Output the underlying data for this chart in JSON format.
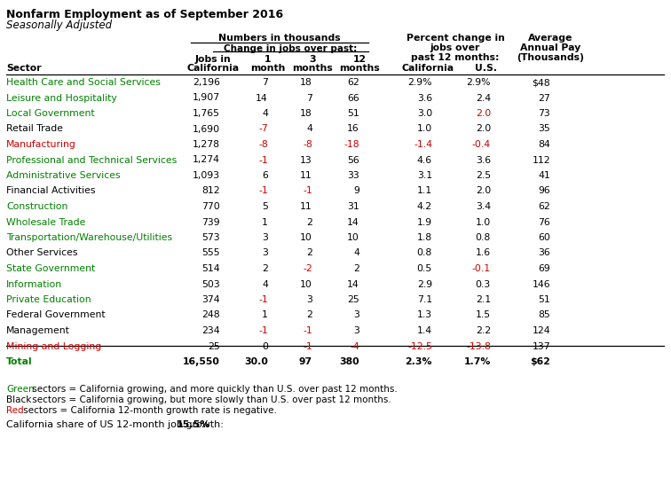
{
  "title": "Nonfarm Employment as of September 2016",
  "subtitle": "Seasonally Adjusted",
  "sectors": [
    "Health Care and Social Services",
    "Leisure and Hospitality",
    "Local Government",
    "Retail Trade",
    "Manufacturing",
    "Professional and Technical Services",
    "Administrative Services",
    "Financial Activities",
    "Construction",
    "Wholesale Trade",
    "Transportation/Warehouse/Utilities",
    "Other Services",
    "State Government",
    "Information",
    "Private Education",
    "Federal Government",
    "Management",
    "Mining and Logging",
    "Total"
  ],
  "jobs_ca": [
    "2,196",
    "1,907",
    "1,765",
    "1,690",
    "1,278",
    "1,274",
    "1,093",
    "812",
    "770",
    "739",
    "573",
    "555",
    "514",
    "503",
    "374",
    "248",
    "234",
    "25",
    "16,550"
  ],
  "change_1m": [
    "7",
    "14",
    "4",
    "-7",
    "-8",
    "-1",
    "6",
    "-1",
    "5",
    "1",
    "3",
    "3",
    "2",
    "4",
    "-1",
    "1",
    "-1",
    "0",
    "30.0"
  ],
  "change_3m": [
    "18",
    "7",
    "18",
    "4",
    "-8",
    "13",
    "11",
    "-1",
    "11",
    "2",
    "10",
    "2",
    "-2",
    "10",
    "3",
    "2",
    "-1",
    "-1",
    "97"
  ],
  "change_12m": [
    "62",
    "66",
    "51",
    "16",
    "-18",
    "56",
    "33",
    "9",
    "31",
    "14",
    "10",
    "4",
    "2",
    "14",
    "25",
    "3",
    "3",
    "-4",
    "380"
  ],
  "pct_ca": [
    "2.9%",
    "3.6",
    "3.0",
    "1.0",
    "-1.4",
    "4.6",
    "3.1",
    "1.1",
    "4.2",
    "1.9",
    "1.8",
    "0.8",
    "0.5",
    "2.9",
    "7.1",
    "1.3",
    "1.4",
    "-12.5",
    "2.3%"
  ],
  "pct_us": [
    "2.9%",
    "2.4",
    "2.0",
    "2.0",
    "-0.4",
    "3.6",
    "2.5",
    "2.0",
    "3.4",
    "1.0",
    "0.8",
    "1.6",
    "-0.1",
    "0.3",
    "2.1",
    "1.5",
    "2.2",
    "-13.8",
    "1.7%"
  ],
  "avg_pay": [
    "$48",
    "27",
    "73",
    "35",
    "84",
    "112",
    "41",
    "96",
    "62",
    "76",
    "60",
    "36",
    "69",
    "146",
    "51",
    "85",
    "124",
    "137",
    "$62"
  ],
  "sector_colors": [
    "green",
    "green",
    "green",
    "black",
    "red",
    "green",
    "green",
    "black",
    "green",
    "green",
    "green",
    "black",
    "green",
    "green",
    "green",
    "black",
    "black",
    "red",
    "green"
  ],
  "change_1m_colors": [
    "black",
    "black",
    "black",
    "red",
    "red",
    "red",
    "black",
    "red",
    "black",
    "black",
    "black",
    "black",
    "black",
    "black",
    "red",
    "black",
    "red",
    "black",
    "black"
  ],
  "change_3m_colors": [
    "black",
    "black",
    "black",
    "black",
    "red",
    "black",
    "black",
    "red",
    "black",
    "black",
    "black",
    "black",
    "red",
    "black",
    "black",
    "black",
    "red",
    "red",
    "black"
  ],
  "change_12m_colors": [
    "black",
    "black",
    "black",
    "black",
    "red",
    "black",
    "black",
    "black",
    "black",
    "black",
    "black",
    "black",
    "black",
    "black",
    "black",
    "black",
    "black",
    "red",
    "black"
  ],
  "pct_ca_colors": [
    "black",
    "black",
    "black",
    "black",
    "red",
    "black",
    "black",
    "black",
    "black",
    "black",
    "black",
    "black",
    "black",
    "black",
    "black",
    "black",
    "black",
    "red",
    "black"
  ],
  "pct_us_colors": [
    "black",
    "black",
    "red",
    "black",
    "red",
    "black",
    "black",
    "black",
    "black",
    "black",
    "black",
    "black",
    "red",
    "black",
    "black",
    "black",
    "black",
    "red",
    "black"
  ],
  "avg_pay_colors": [
    "black",
    "black",
    "black",
    "black",
    "black",
    "black",
    "black",
    "black",
    "black",
    "black",
    "black",
    "black",
    "black",
    "black",
    "black",
    "black",
    "black",
    "black",
    "black"
  ],
  "color_green": "#008000",
  "color_red": "#CC0000",
  "color_black": "#000000"
}
